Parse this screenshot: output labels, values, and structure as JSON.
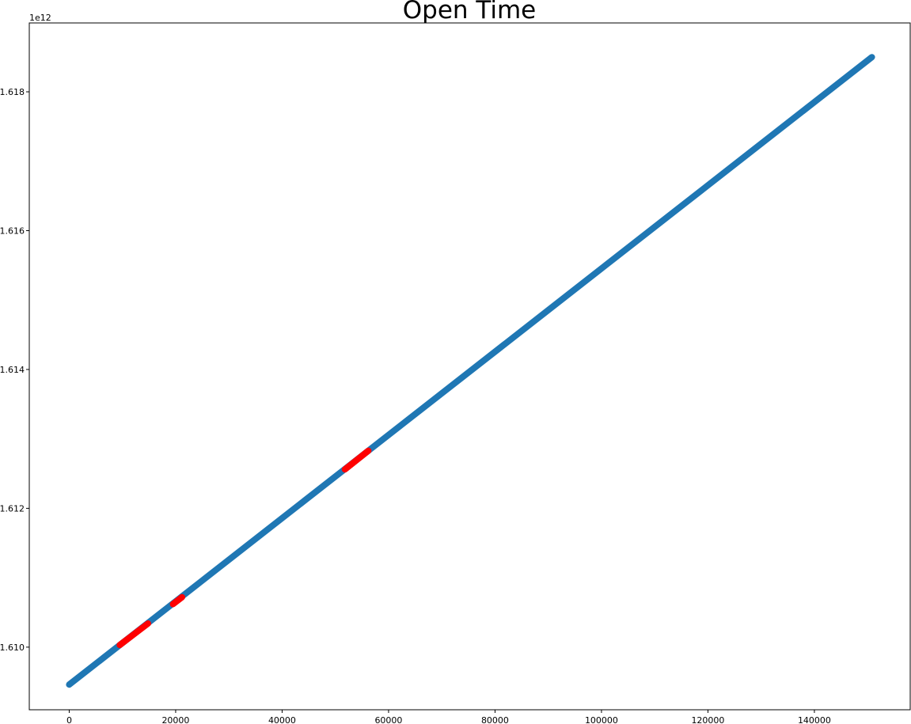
{
  "chart_data": {
    "type": "scatter",
    "title": "Open Time",
    "xlabel": "",
    "ylabel": "",
    "y_offset_label": "1e12",
    "xlim": [
      -7500,
      158000
    ],
    "ylim": [
      1609098000000,
      1618992000000
    ],
    "x_ticks": [
      0,
      20000,
      40000,
      60000,
      80000,
      100000,
      120000,
      140000
    ],
    "x_tick_labels": [
      "0",
      "20000",
      "40000",
      "60000",
      "80000",
      "100000",
      "120000",
      "140000"
    ],
    "y_ticks": [
      1610000000000,
      1612000000000,
      1614000000000,
      1616000000000,
      1618000000000
    ],
    "y_tick_labels": [
      "1.610",
      "1.612",
      "1.614",
      "1.616",
      "1.618"
    ],
    "grid": false,
    "series": [
      {
        "color": "#1f77b4",
        "segments": [
          {
            "x": [
              0,
              150800
            ],
            "y": [
              1609460000000,
              1618500000000
            ]
          }
        ]
      },
      {
        "color": "#ff0000",
        "segments": [
          {
            "x": [
              9500,
              14800
            ],
            "y": [
              1610030000000,
              1610340000000
            ]
          },
          {
            "x": [
              19500,
              21200
            ],
            "y": [
              1610620000000,
              1610720000000
            ]
          },
          {
            "x": [
              51800,
              56200
            ],
            "y": [
              1612560000000,
              1612830000000
            ]
          }
        ]
      }
    ]
  }
}
